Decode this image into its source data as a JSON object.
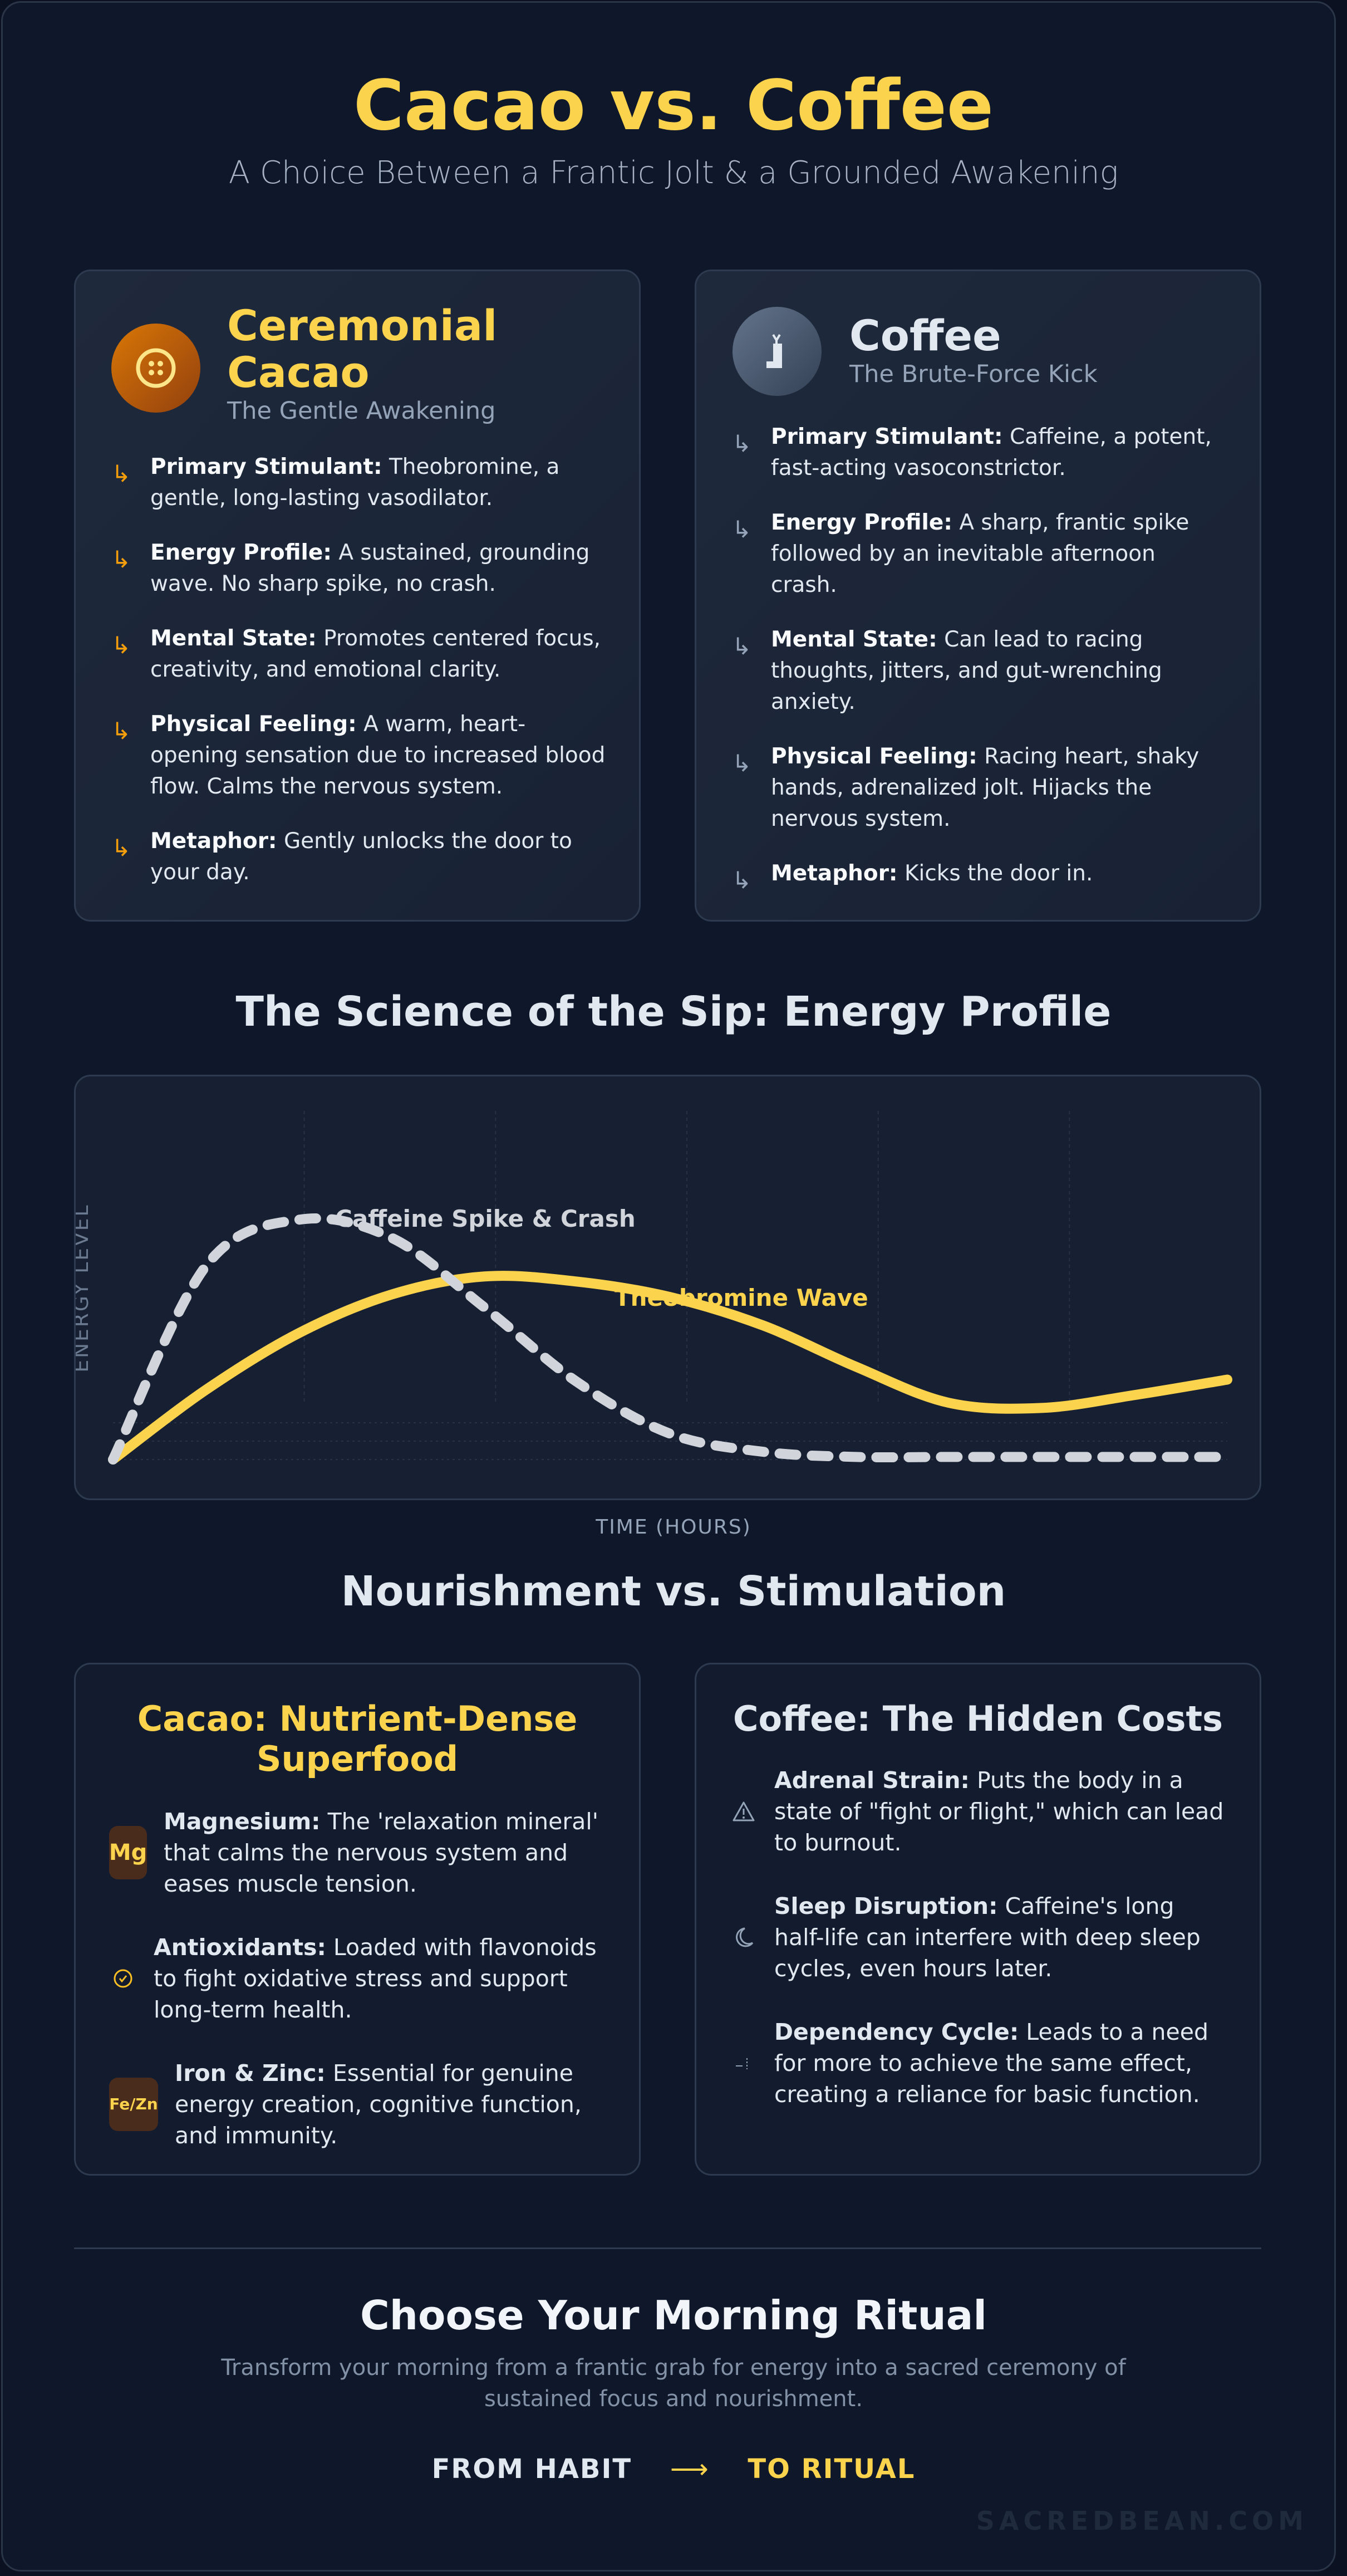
{
  "header": {
    "title": "Cacao vs. Coffee",
    "subtitle": "A Choice Between a Frantic Jolt & a Grounded Awakening"
  },
  "cards": {
    "cacao": {
      "title_line1": "Ceremonial",
      "title_line2": "Cacao",
      "subtitle": "The Gentle Awakening",
      "icon": "cacao-bean-icon",
      "accent": "#fcd34d",
      "items": [
        {
          "label": "Primary Stimulant:",
          "text": "Theobromine, a gentle, long-lasting vasodilator."
        },
        {
          "label": "Energy Profile:",
          "text": "A sustained, grounding wave. No sharp spike, no crash."
        },
        {
          "label": "Mental State:",
          "text": "Promotes centered focus, creativity, and emotional clarity."
        },
        {
          "label": "Physical Feeling:",
          "text": "A warm, heart-opening sensation due to increased blood flow. Calms the nervous system."
        },
        {
          "label": "Metaphor:",
          "text": "Gently unlocks the door to your day."
        }
      ]
    },
    "coffee": {
      "title": "Coffee",
      "subtitle": "The Brute-Force Kick",
      "icon": "coffee-icon",
      "items": [
        {
          "label": "Primary Stimulant:",
          "text": "Caffeine, a potent, fast-acting vasoconstrictor."
        },
        {
          "label": "Energy Profile:",
          "text": "A sharp, frantic spike followed by an inevitable afternoon crash."
        },
        {
          "label": "Mental State:",
          "text": "Can lead to racing thoughts, jitters, and gut-wrenching anxiety."
        },
        {
          "label": "Physical Feeling:",
          "text": "Racing heart, shaky hands, adrenalized jolt. Hijacks the nervous system."
        },
        {
          "label": "Metaphor:",
          "text": "Kicks the door in."
        }
      ]
    }
  },
  "science": {
    "title": "The Science of the Sip: Energy Profile"
  },
  "chart_data": {
    "type": "line",
    "xlabel": "TIME (HOURS)",
    "ylabel": "ENERGY LEVEL",
    "x": [
      0,
      1,
      2,
      3,
      4,
      5,
      6,
      7,
      8,
      9,
      10,
      11,
      12
    ],
    "grid": "vertical dashed",
    "series": [
      {
        "name": "Caffeine Spike & Crash",
        "color": "#d1d5db",
        "style": "dashed",
        "values": [
          0,
          75,
          93,
          86,
          59,
          30,
          10,
          3,
          1,
          1,
          1,
          1,
          1
        ]
      },
      {
        "name": "Theobromine Wave",
        "color": "#fcd34d",
        "style": "solid",
        "values": [
          0,
          27,
          49,
          64,
          71,
          69,
          63,
          52,
          36,
          22,
          20,
          25,
          31
        ]
      }
    ],
    "ylim": [
      0,
      100
    ]
  },
  "nourishment": {
    "title": "Nourishment vs. Stimulation",
    "cacao": {
      "title": "Cacao: Nutrient-Dense Superfood",
      "items": [
        {
          "badge": "Mg",
          "label": "Magnesium:",
          "text": "The 'relaxation mineral' that calms the nervous system and eases muscle tension."
        },
        {
          "icon": "check-circle-icon",
          "label": "Antioxidants:",
          "text": "Loaded with flavonoids to fight oxidative stress and support long-term health."
        },
        {
          "badge": "Fe/Zn",
          "label": "Iron & Zinc:",
          "text": "Essential for genuine energy creation, cognitive function, and immunity."
        }
      ]
    },
    "coffee": {
      "title": "Coffee: The Hidden Costs",
      "items": [
        {
          "icon": "warning-icon",
          "label": "Adrenal Strain:",
          "text": "Puts the body in a state of \"fight or flight,\" which can lead to burnout."
        },
        {
          "icon": "moon-icon",
          "label": "Sleep Disruption:",
          "text": "Caffeine's long half-life can interfere with deep sleep cycles, even hours later."
        },
        {
          "icon": "cycle-icon",
          "label": "Dependency Cycle:",
          "text": "Leads to a need for more to achieve the same effect, creating a reliance for basic function."
        }
      ]
    }
  },
  "cta": {
    "title": "Choose Your Morning Ritual",
    "text": "Transform your morning from a frantic grab for energy into a sacred ceremony of sustained focus and nourishment.",
    "from": "FROM HABIT",
    "arrow": "⟶",
    "to": "TO RITUAL"
  },
  "footer": {
    "brand": "SACREDBEAN.COM"
  }
}
